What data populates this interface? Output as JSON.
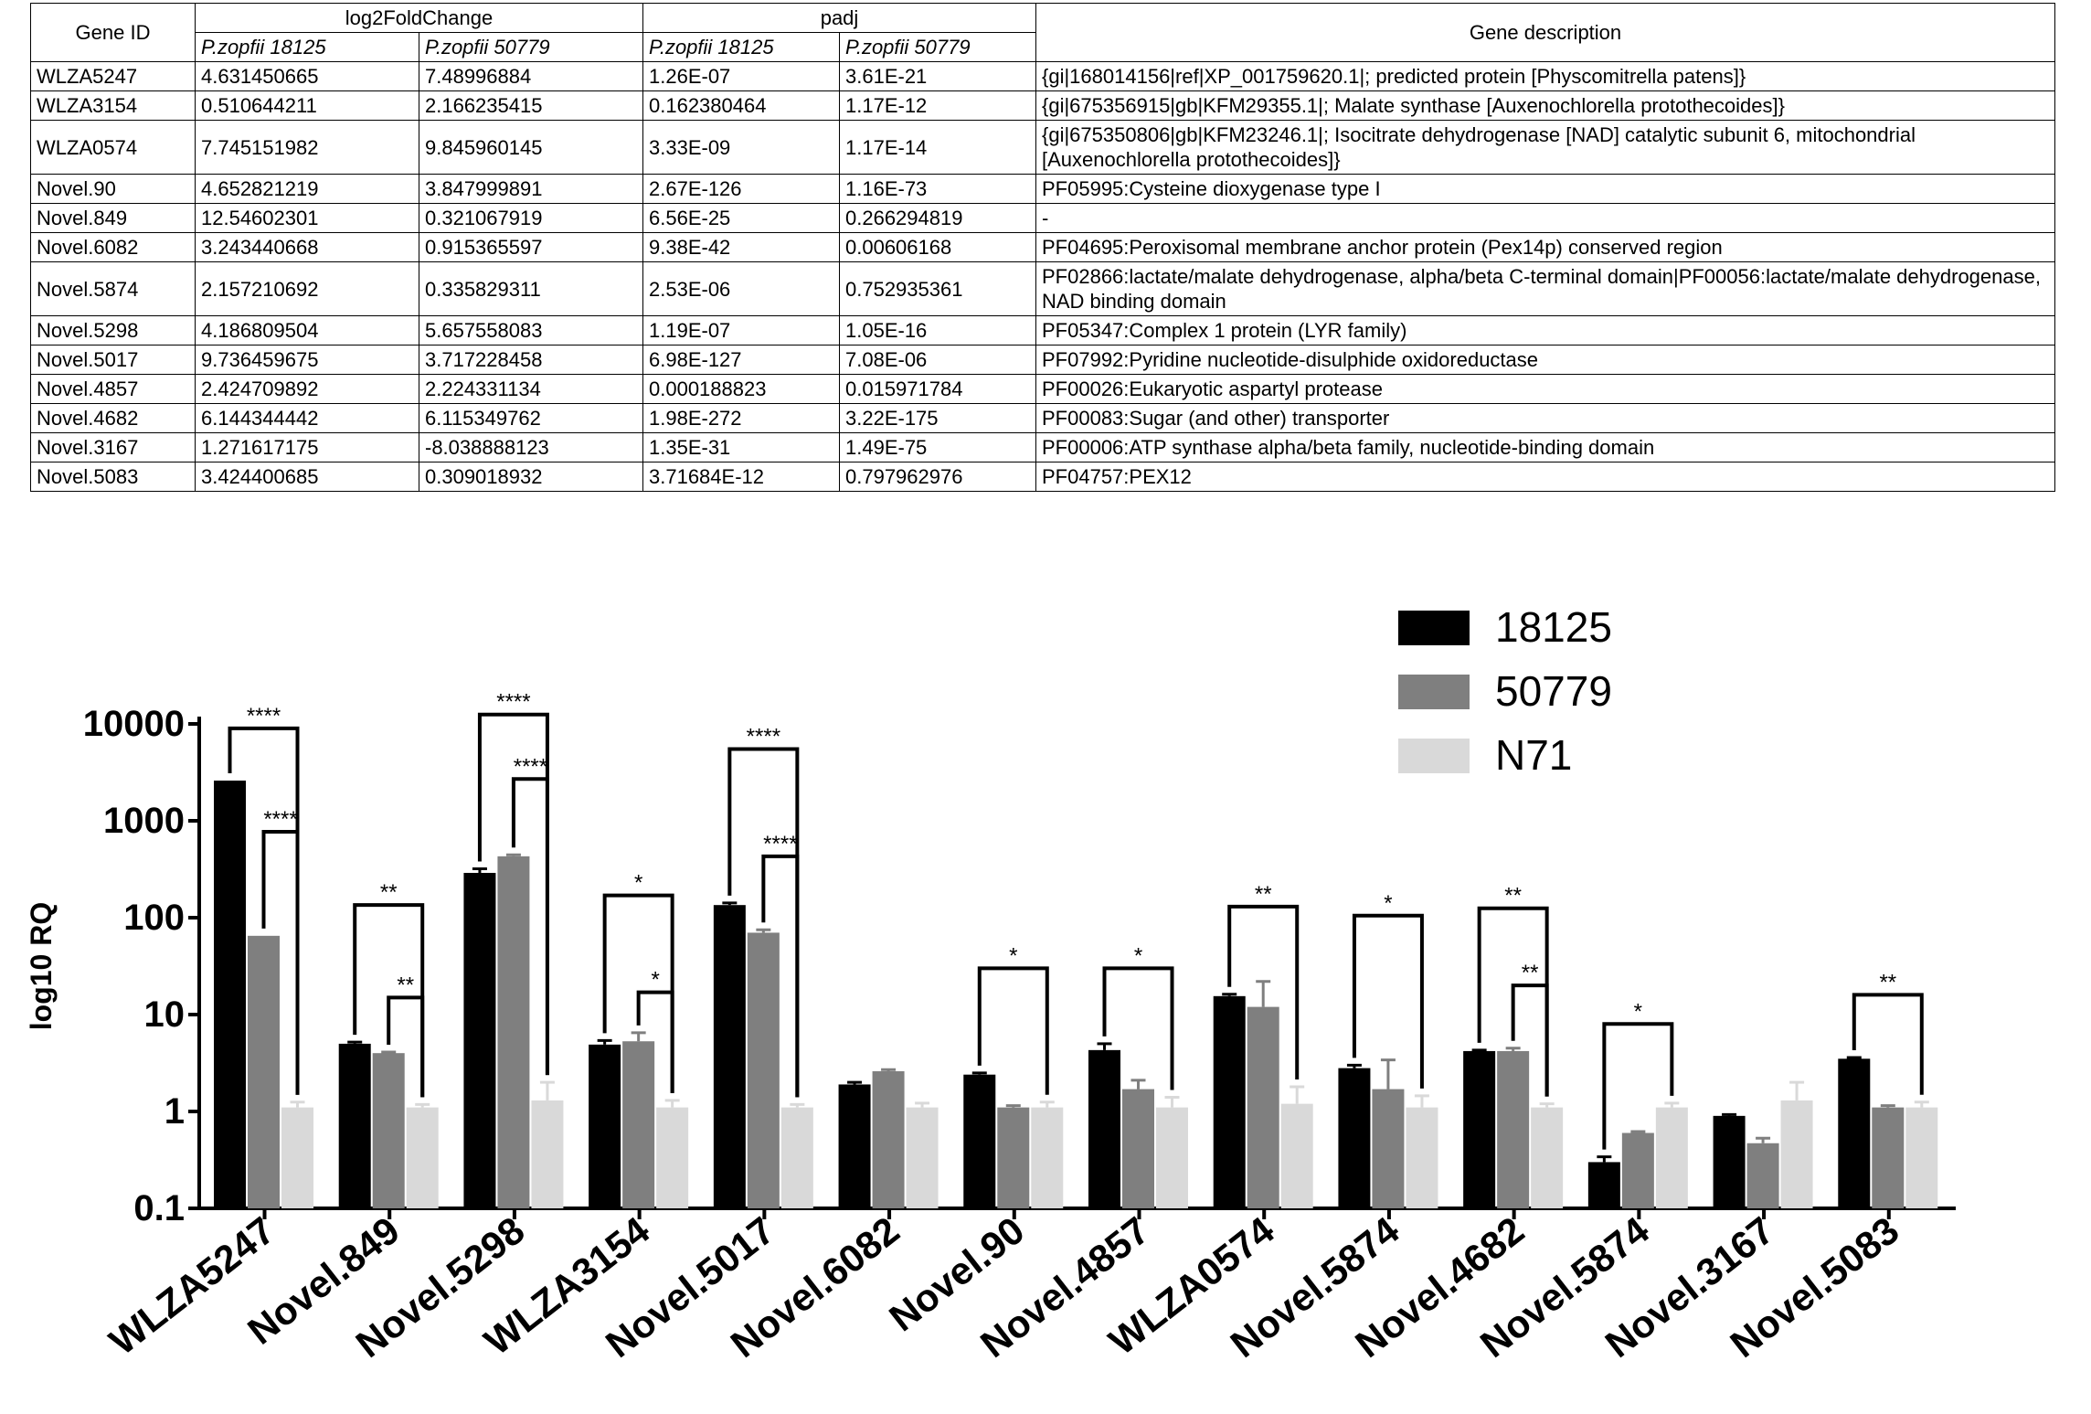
{
  "table": {
    "headers": {
      "gene_id": "Gene ID",
      "log2fc": "log2FoldChange",
      "padj": "padj",
      "description": "Gene description",
      "strain_a": "P.zopfii 18125",
      "strain_b": "P.zopfii  50779"
    },
    "rows": [
      [
        "WLZA5247",
        "4.631450665",
        "7.48996884",
        "1.26E-07",
        "3.61E-21",
        "{gi|168014156|ref|XP_001759620.1|; predicted protein [Physcomitrella patens]}"
      ],
      [
        "WLZA3154",
        "0.510644211",
        "2.166235415",
        "0.162380464",
        "1.17E-12",
        "{gi|675356915|gb|KFM29355.1|; Malate synthase [Auxenochlorella protothecoides]}"
      ],
      [
        "WLZA0574",
        "7.745151982",
        "9.845960145",
        "3.33E-09",
        "1.17E-14",
        "{gi|675350806|gb|KFM23246.1|; Isocitrate dehydrogenase [NAD] catalytic subunit 6, mitochondrial [Auxenochlorella protothecoides]}"
      ],
      [
        "Novel.90",
        "4.652821219",
        "3.847999891",
        "2.67E-126",
        "1.16E-73",
        "PF05995:Cysteine dioxygenase type I"
      ],
      [
        "Novel.849",
        "12.54602301",
        "0.321067919",
        "6.56E-25",
        "0.266294819",
        "-"
      ],
      [
        "Novel.6082",
        "3.243440668",
        "0.915365597",
        "9.38E-42",
        "0.00606168",
        "PF04695:Peroxisomal membrane anchor protein (Pex14p) conserved region"
      ],
      [
        "Novel.5874",
        "2.157210692",
        "0.335829311",
        "2.53E-06",
        "0.752935361",
        "PF02866:lactate/malate dehydrogenase, alpha/beta C-terminal domain|PF00056:lactate/malate dehydrogenase, NAD binding domain"
      ],
      [
        "Novel.5298",
        "4.186809504",
        "5.657558083",
        "1.19E-07",
        "1.05E-16",
        "PF05347:Complex 1 protein (LYR family)"
      ],
      [
        "Novel.5017",
        "9.736459675",
        "3.717228458",
        "6.98E-127",
        "7.08E-06",
        "PF07992:Pyridine nucleotide-disulphide oxidoreductase"
      ],
      [
        "Novel.4857",
        "2.424709892",
        "2.224331134",
        "0.000188823",
        "0.015971784",
        "PF00026:Eukaryotic aspartyl protease"
      ],
      [
        "Novel.4682",
        "6.144344442",
        "6.115349762",
        "1.98E-272",
        "3.22E-175",
        "PF00083:Sugar (and other) transporter"
      ],
      [
        "Novel.3167",
        "1.271617175",
        "-8.038888123",
        "1.35E-31",
        "1.49E-75",
        "PF00006:ATP synthase alpha/beta family, nucleotide-binding domain"
      ],
      [
        "Novel.5083",
        "3.424400685",
        "0.309018932",
        "3.71684E-12",
        "0.797962976",
        "PF04757:PEX12"
      ]
    ]
  },
  "colors": {
    "s18125": "#000000",
    "s50779": "#7f7f7f",
    "sN71": "#d9d9d9"
  },
  "chart_data": {
    "type": "bar",
    "ylabel": "log10 RQ",
    "yscale": "log",
    "ylim": [
      0.1,
      10000
    ],
    "yticks": [
      0.1,
      1,
      10,
      100,
      1000,
      10000
    ],
    "ytick_labels": [
      "0.1",
      "1",
      "10",
      "100",
      "1000",
      "10000"
    ],
    "legend_position": "top-right",
    "categories": [
      "WLZA5247",
      "Novel.849",
      "Novel.5298",
      "WLZA3154",
      "Novel.5017",
      "Novel.6082",
      "Novel.90",
      "Novel.4857",
      "WLZA0574",
      "Novel.5874",
      "Novel.4682",
      "Novel.5874",
      "Novel.3167",
      "Novel.5083"
    ],
    "series": [
      {
        "name": "18125",
        "values": [
          2600,
          5.0,
          290,
          4.9,
          135,
          1.9,
          2.4,
          4.3,
          15.5,
          2.8,
          4.2,
          0.3,
          0.9,
          3.5
        ],
        "errors": [
          0,
          5.2,
          320,
          5.4,
          142,
          2.0,
          2.5,
          5.0,
          16.2,
          3.0,
          4.3,
          0.34,
          0.93,
          3.6
        ]
      },
      {
        "name": "50779",
        "values": [
          65,
          4.0,
          430,
          5.3,
          70,
          2.6,
          1.1,
          1.7,
          12,
          1.7,
          4.2,
          0.6,
          0.47,
          1.1
        ],
        "errors": [
          0,
          4.1,
          445,
          6.5,
          75,
          2.7,
          1.15,
          2.1,
          22,
          3.4,
          4.5,
          0.62,
          0.53,
          1.15
        ]
      },
      {
        "name": "N71",
        "values": [
          1.1,
          1.1,
          1.3,
          1.1,
          1.1,
          1.1,
          1.1,
          1.1,
          1.2,
          1.1,
          1.1,
          1.1,
          1.3,
          1.1
        ],
        "errors": [
          1.25,
          1.18,
          2.0,
          1.3,
          1.18,
          1.22,
          1.25,
          1.4,
          1.8,
          1.45,
          1.2,
          1.22,
          2.0,
          1.25
        ]
      }
    ],
    "significance": [
      {
        "category": 0,
        "from": "18125",
        "to": "N71",
        "label": "****",
        "y": 9000
      },
      {
        "category": 0,
        "from": "50779",
        "to": "N71",
        "label": "****",
        "y": 770
      },
      {
        "category": 1,
        "from": "18125",
        "to": "N71",
        "label": "**",
        "y": 135
      },
      {
        "category": 1,
        "from": "50779",
        "to": "N71",
        "label": "**",
        "y": 15
      },
      {
        "category": 2,
        "from": "18125",
        "to": "N71",
        "label": "****",
        "y": 12500
      },
      {
        "category": 2,
        "from": "50779",
        "to": "N71",
        "label": "****",
        "y": 2700
      },
      {
        "category": 3,
        "from": "18125",
        "to": "N71",
        "label": "*",
        "y": 170
      },
      {
        "category": 3,
        "from": "50779",
        "to": "N71",
        "label": "*",
        "y": 17
      },
      {
        "category": 4,
        "from": "18125",
        "to": "N71",
        "label": "****",
        "y": 5500
      },
      {
        "category": 4,
        "from": "50779",
        "to": "N71",
        "label": "****",
        "y": 430
      },
      {
        "category": 6,
        "from": "18125",
        "to": "N71",
        "label": "*",
        "y": 30
      },
      {
        "category": 7,
        "from": "18125",
        "to": "N71",
        "label": "*",
        "y": 30
      },
      {
        "category": 8,
        "from": "18125",
        "to": "N71",
        "label": "**",
        "y": 130
      },
      {
        "category": 9,
        "from": "18125",
        "to": "N71",
        "label": "*",
        "y": 105
      },
      {
        "category": 10,
        "from": "18125",
        "to": "N71",
        "label": "**",
        "y": 125
      },
      {
        "category": 10,
        "from": "50779",
        "to": "N71",
        "label": "**",
        "y": 20
      },
      {
        "category": 11,
        "from": "18125",
        "to": "N71",
        "label": "*",
        "y": 8
      },
      {
        "category": 13,
        "from": "18125",
        "to": "N71",
        "label": "**",
        "y": 16
      }
    ]
  }
}
